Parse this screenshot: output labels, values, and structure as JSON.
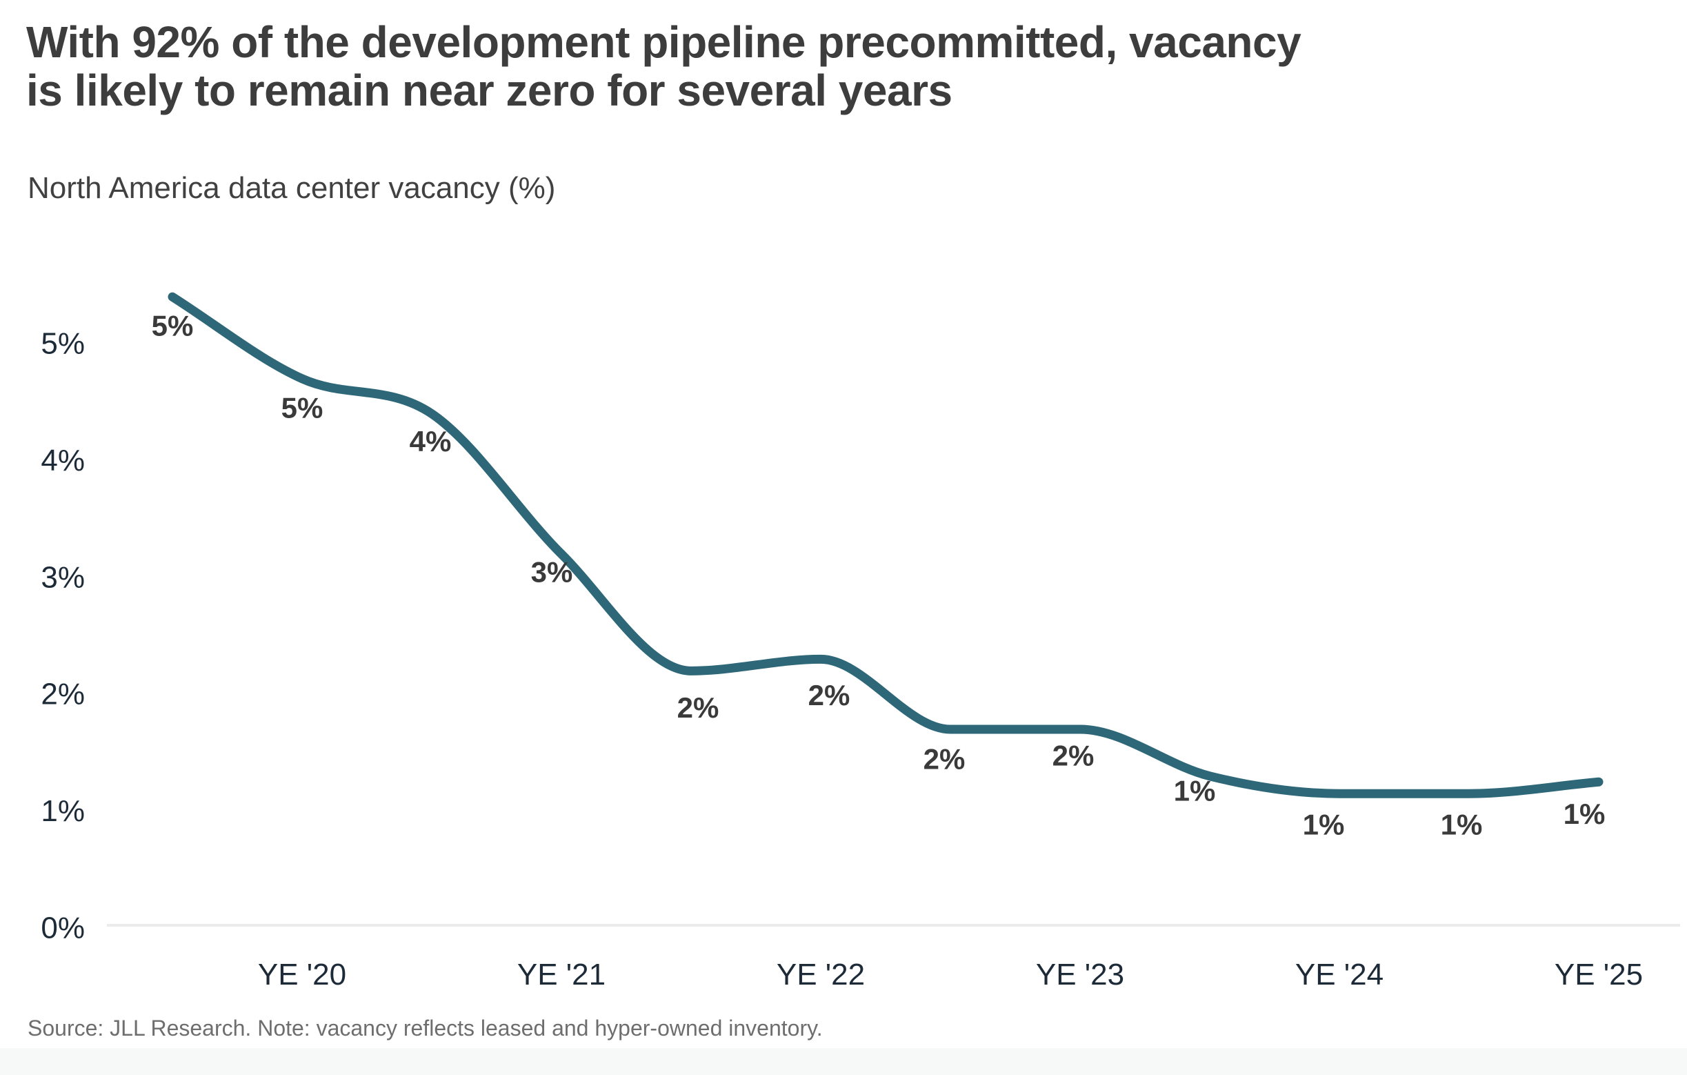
{
  "header": {
    "title_lines": [
      "With 92% of the development pipeline precommitted, vacancy",
      "is likely to remain near zero for several years"
    ],
    "title_full": "With 92% of the development pipeline precommitted, vacancy is likely to remain near zero for several years",
    "subtitle": "North America data center vacancy (%)"
  },
  "footer": {
    "source_note": "Source: JLL Research. Note: vacancy reflects leased and hyper-owned inventory."
  },
  "colors": {
    "line": "#2e6878",
    "title_text": "#3d3d3d",
    "subtitle_text": "#414141",
    "axis_label_text": "#1d2b38",
    "data_label_text": "#3a3a3a",
    "axis_baseline": "#ebebeb",
    "source_text": "#6e6e6e",
    "background": "#ffffff"
  },
  "chart_data": {
    "type": "line",
    "name": "North America data center vacancy (%)",
    "values": [
      5.4,
      4.7,
      4.4,
      3.2,
      2.2,
      2.3,
      1.7,
      1.7,
      1.3,
      1.15,
      1.15,
      1.25
    ],
    "point_labels": [
      "5%",
      "5%",
      "4%",
      "3%",
      "2%",
      "2%",
      "2%",
      "2%",
      "1%",
      "1%",
      "1%",
      "1%"
    ],
    "x_tick_labels": [
      "YE '20",
      "YE '21",
      "YE '22",
      "YE '23",
      "YE '24",
      "YE '25"
    ],
    "x_tick_point_indices": [
      1,
      3,
      5,
      7,
      9,
      11
    ],
    "y_tick_labels": [
      "0%",
      "1%",
      "2%",
      "3%",
      "4%",
      "5%"
    ],
    "y_tick_values": [
      0,
      1,
      2,
      3,
      4,
      5
    ],
    "ylim": [
      0,
      5.6
    ],
    "grid": "none",
    "baseline_at_zero": true,
    "legend": "none",
    "line_smoothing": "monotone-cubic"
  }
}
